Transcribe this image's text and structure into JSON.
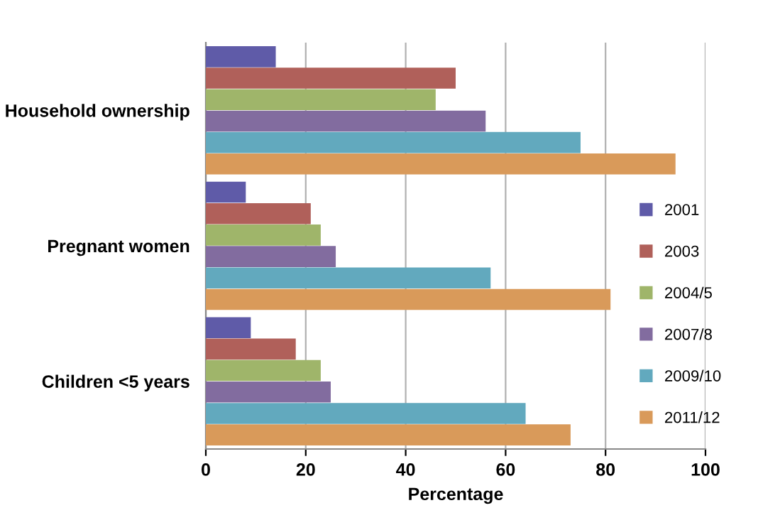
{
  "chart_data": {
    "type": "bar",
    "orientation": "horizontal",
    "xlabel": "Percentage",
    "categories": [
      "Household ownership",
      "Pregnant women",
      "Children <5 years"
    ],
    "series": [
      {
        "name": "2001",
        "color": "#5f5ba8",
        "values": [
          14,
          8,
          9
        ]
      },
      {
        "name": "2003",
        "color": "#b0605a",
        "values": [
          50,
          21,
          18
        ]
      },
      {
        "name": "2004/5",
        "color": "#9fb56a",
        "values": [
          46,
          23,
          23
        ]
      },
      {
        "name": "2007/8",
        "color": "#826c9f",
        "values": [
          56,
          26,
          25
        ]
      },
      {
        "name": "2009/10",
        "color": "#62a9be",
        "values": [
          75,
          57,
          64
        ]
      },
      {
        "name": "2011/12",
        "color": "#d99a5a",
        "values": [
          94,
          81,
          73
        ]
      }
    ],
    "xlim": [
      0,
      100
    ],
    "xticks": [
      0,
      20,
      40,
      60,
      80,
      100
    ],
    "grid": "x",
    "legend": "right"
  }
}
